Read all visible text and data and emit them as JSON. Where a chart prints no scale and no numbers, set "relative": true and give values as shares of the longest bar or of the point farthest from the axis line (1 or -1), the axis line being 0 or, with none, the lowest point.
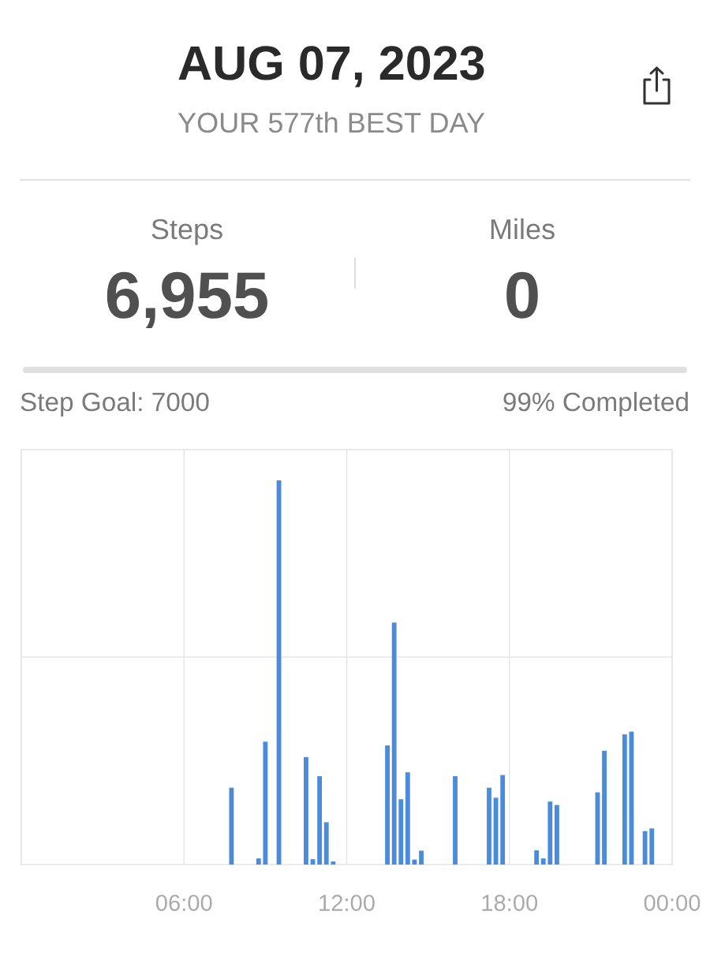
{
  "chart_data": [
    {
      "type": "other",
      "title": "AUG 07, 2023",
      "subtitle": "YOUR 577th BEST DAY",
      "annotations": [
        "Steps",
        "6,955",
        "Miles",
        "0",
        "Step Goal: 7000",
        "99% Completed"
      ]
    },
    {
      "type": "bar",
      "relative": true,
      "x": [
        7.75,
        8.75,
        9.0,
        9.5,
        10.5,
        10.75,
        11.0,
        11.25,
        11.5,
        13.5,
        13.75,
        14.0,
        14.25,
        14.5,
        14.75,
        16.0,
        17.25,
        17.5,
        17.75,
        19.0,
        19.25,
        19.5,
        19.75,
        21.25,
        21.5,
        22.25,
        22.5,
        23.0,
        23.25
      ],
      "values": [
        0.2,
        0.016,
        0.32,
        1,
        0.28,
        0.014,
        0.23,
        0.11,
        0.008,
        0.31,
        0.63,
        0.17,
        0.24,
        0.013,
        0.036,
        0.23,
        0.2,
        0.174,
        0.233,
        0.037,
        0.016,
        0.164,
        0.155,
        0.188,
        0.296,
        0.339,
        0.346,
        0.087,
        0.094
      ],
      "color": "#4a8cdb",
      "xlim": [
        0,
        24
      ],
      "xticks": [
        {
          "value": 6,
          "label": "06:00"
        },
        {
          "value": 12,
          "label": "12:00"
        },
        {
          "value": 18,
          "label": "18:00"
        },
        {
          "value": 24,
          "label": "00:00"
        }
      ],
      "grid": true
    }
  ]
}
